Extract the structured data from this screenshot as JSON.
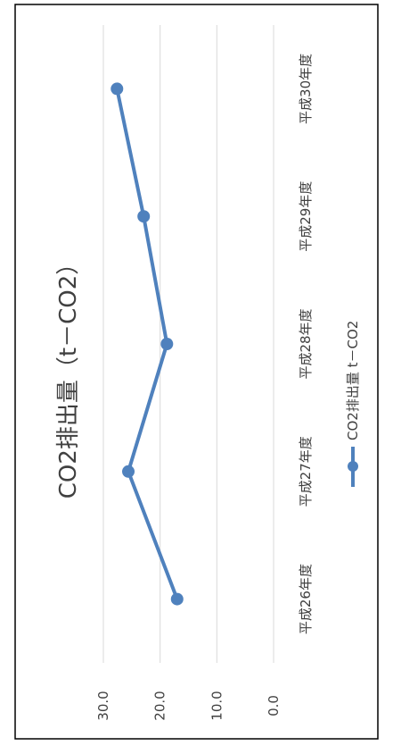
{
  "chart_data": {
    "type": "line",
    "orientation": "rotated-90-clockwise",
    "title": "CO2排出量（t－CO2）",
    "categories": [
      "平成26年度",
      "平成27年度",
      "平成28年度",
      "平成29年度",
      "平成30年度"
    ],
    "series": [
      {
        "name": "CO2排出量 t－CO2",
        "values": [
          17.0,
          25.6,
          18.8,
          22.9,
          27.6
        ]
      }
    ],
    "ylim": [
      0,
      30
    ],
    "yticks": [
      "0.0",
      "10.0",
      "20.0",
      "30.0"
    ],
    "grid": true,
    "legend_position": "bottom",
    "colors": {
      "series": "#4F81BD",
      "grid": "#D9D9D9",
      "text": "#404040",
      "border": "#000000"
    }
  }
}
